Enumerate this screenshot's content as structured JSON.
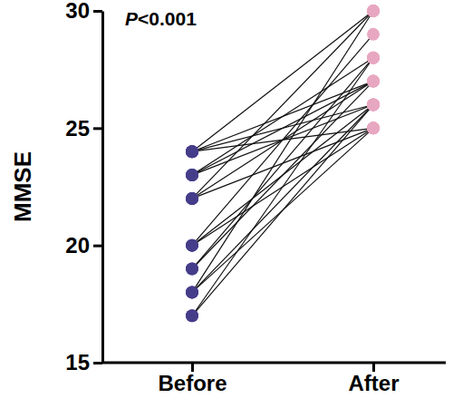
{
  "chart_data": {
    "type": "paired_dot",
    "annotation": "P<0.001",
    "y_label": "MMSE",
    "categories": [
      "Before",
      "After"
    ],
    "colors": [
      "#453d8a",
      "#e8a7c0"
    ],
    "ylim": [
      15,
      30
    ],
    "yticks": [
      15,
      20,
      25,
      30
    ],
    "values": [
      [
        24,
        30
      ],
      [
        24,
        27
      ],
      [
        24,
        25
      ],
      [
        23,
        28
      ],
      [
        23,
        26
      ],
      [
        22,
        30
      ],
      [
        22,
        27
      ],
      [
        22,
        25
      ],
      [
        20,
        29
      ],
      [
        20,
        26
      ],
      [
        20,
        25
      ],
      [
        19,
        28
      ],
      [
        19,
        27
      ],
      [
        18,
        30
      ],
      [
        18,
        26
      ],
      [
        18,
        25
      ],
      [
        17,
        28
      ],
      [
        17,
        26
      ],
      [
        24,
        26
      ],
      [
        23,
        27
      ]
    ]
  }
}
